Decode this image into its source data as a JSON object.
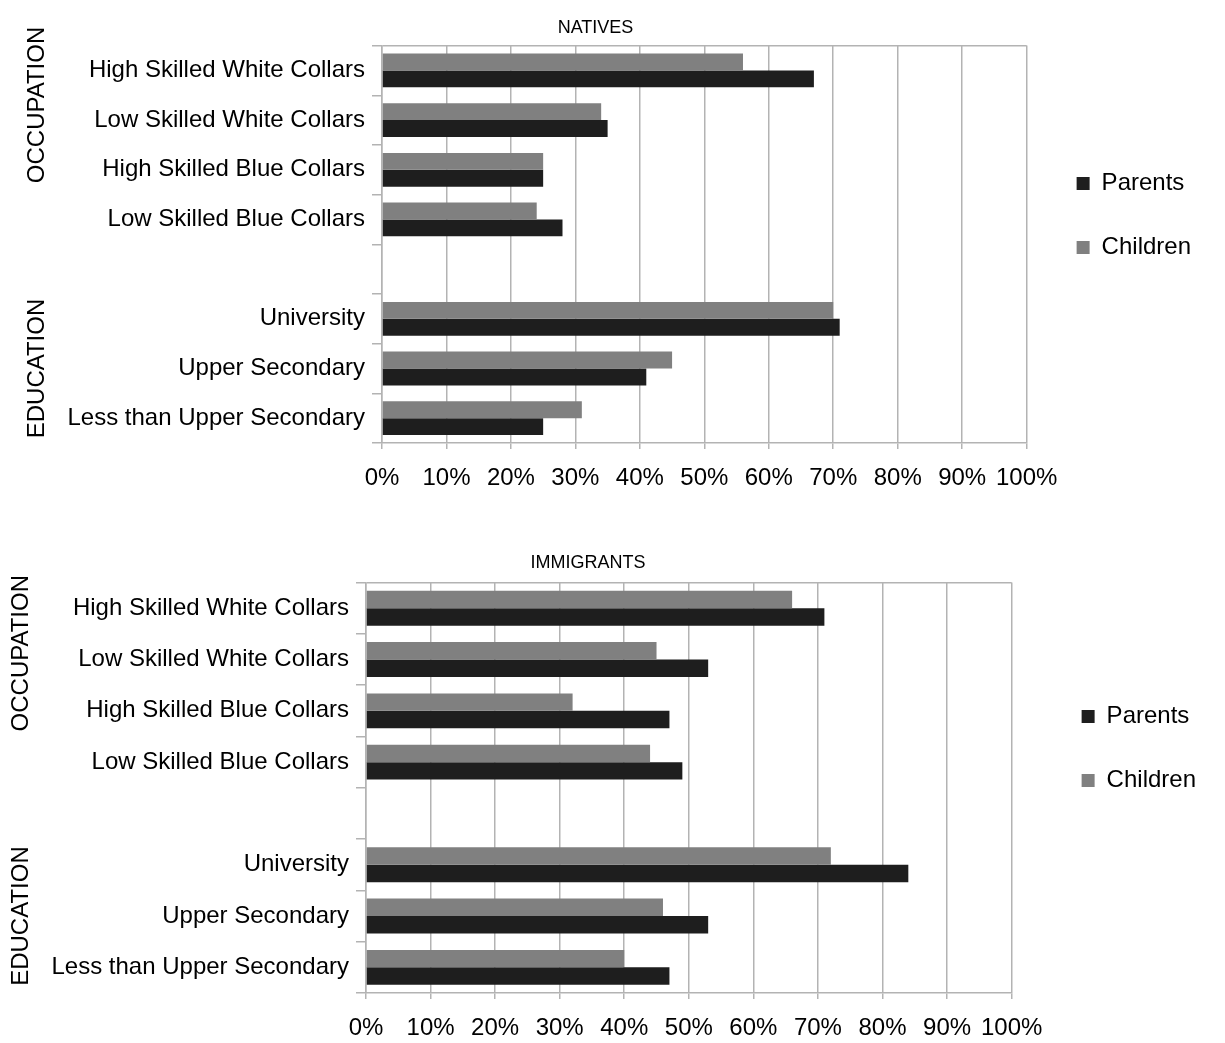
{
  "chart_data": [
    {
      "type": "bar",
      "orientation": "horizontal",
      "title": "NATIVES",
      "categories": [
        "High Skilled White Collars",
        "Low Skilled White Collars",
        "High Skilled Blue Collars",
        "Low Skilled Blue Collars",
        null,
        "University",
        "Upper Secondary",
        "Less than Upper Secondary"
      ],
      "series": [
        {
          "name": "Parents",
          "color": "#1e1e1e",
          "values": [
            67,
            35,
            25,
            28,
            null,
            71,
            41,
            25
          ]
        },
        {
          "name": "Children",
          "color": "#808080",
          "values": [
            56,
            34,
            25,
            24,
            null,
            70,
            45,
            31
          ]
        }
      ],
      "xlim": [
        0,
        100
      ],
      "xticks": [
        {
          "value": 0,
          "label": "0%"
        },
        {
          "value": 10,
          "label": "10%"
        },
        {
          "value": 20,
          "label": "20%"
        },
        {
          "value": 30,
          "label": "30%"
        },
        {
          "value": 40,
          "label": "40%"
        },
        {
          "value": 50,
          "label": "50%"
        },
        {
          "value": 60,
          "label": "60%"
        },
        {
          "value": 70,
          "label": "70%"
        },
        {
          "value": 80,
          "label": "80%"
        },
        {
          "value": 90,
          "label": "90%"
        },
        {
          "value": 100,
          "label": "100%"
        }
      ],
      "grid": "x",
      "legend": "right",
      "annotations": [
        "OCCUPATION",
        "EDUCATION"
      ]
    },
    {
      "type": "bar",
      "orientation": "horizontal",
      "title": "IMMIGRANTS",
      "categories": [
        "High Skilled White Collars",
        "Low Skilled White Collars",
        "High Skilled Blue Collars",
        "Low Skilled Blue Collars",
        null,
        "University",
        "Upper Secondary",
        "Less than Upper Secondary"
      ],
      "series": [
        {
          "name": "Parents",
          "color": "#1e1e1e",
          "values": [
            71,
            53,
            47,
            49,
            null,
            84,
            53,
            47
          ]
        },
        {
          "name": "Children",
          "color": "#808080",
          "values": [
            66,
            45,
            32,
            44,
            null,
            72,
            46,
            40
          ]
        }
      ],
      "xlim": [
        0,
        100
      ],
      "xticks": [
        {
          "value": 0,
          "label": "0%"
        },
        {
          "value": 10,
          "label": "10%"
        },
        {
          "value": 20,
          "label": "20%"
        },
        {
          "value": 30,
          "label": "30%"
        },
        {
          "value": 40,
          "label": "40%"
        },
        {
          "value": 50,
          "label": "50%"
        },
        {
          "value": 60,
          "label": "60%"
        },
        {
          "value": 70,
          "label": "70%"
        },
        {
          "value": 80,
          "label": "80%"
        },
        {
          "value": 90,
          "label": "90%"
        },
        {
          "value": 100,
          "label": "100%"
        }
      ],
      "grid": "x",
      "legend": "right",
      "annotations": [
        "OCCUPATION",
        "EDUCATION"
      ]
    }
  ]
}
